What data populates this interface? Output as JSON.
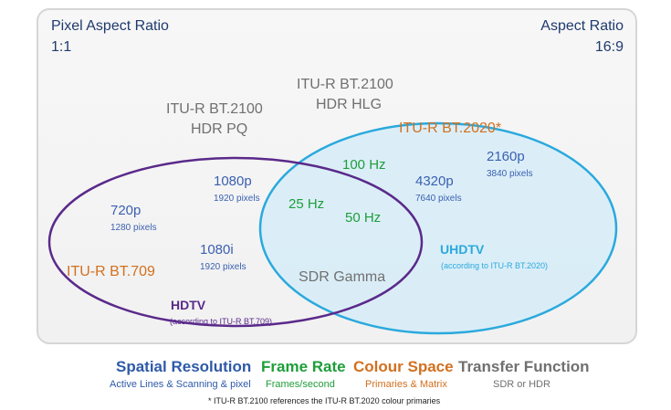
{
  "corners": {
    "top_left": {
      "title": "Pixel Aspect Ratio",
      "value": "1:1"
    },
    "top_right": {
      "title": "Aspect Ratio",
      "value": "16:9"
    }
  },
  "transfer_labels": {
    "hdr_pq": {
      "line1": "ITU-R BT.2100",
      "line2": "HDR PQ"
    },
    "hdr_hlg": {
      "line1": "ITU-R BT.2100",
      "line2": "HDR HLG"
    }
  },
  "uhdtv": {
    "standard": "ITU-R BT.2020*",
    "res_4320": {
      "label": "4320p",
      "pixels": "7640 pixels"
    },
    "res_2160": {
      "label": "2160p",
      "pixels": "3840 pixels"
    },
    "rate_100": "100 Hz",
    "name": "UHDTV",
    "note": "(according to ITU-R BT.2020)"
  },
  "hdtv": {
    "res_720": {
      "label": "720p",
      "pixels": "1280 pixels"
    },
    "res_1080p": {
      "label": "1080p",
      "pixels": "1920 pixels"
    },
    "res_1080i": {
      "label": "1080i",
      "pixels": "1920 pixels"
    },
    "standard": "ITU-R BT.709",
    "name": "HDTV",
    "note": "(according to ITU-R BT.709)"
  },
  "overlap": {
    "rate_25": "25 Hz",
    "rate_50": "50 Hz",
    "gamma": "SDR Gamma"
  },
  "legend": [
    {
      "title": "Spatial Resolution",
      "sub": "Active Lines & Scanning & pixel",
      "color": "#2e5aa8"
    },
    {
      "title": "Frame Rate",
      "sub": "Frames/second",
      "color": "#1e9e3a"
    },
    {
      "title": "Colour Space",
      "sub": "Primaries & Matrix",
      "color": "#d2701f"
    },
    {
      "title": "Transfer Function",
      "sub": "SDR or HDR",
      "color": "#707070"
    }
  ],
  "footnote": "* ITU-R BT.2100 references the ITU-R BT.2020 colour primaries",
  "colors": {
    "hdtv_ellipse": "#5a2a8a",
    "uhdtv_ellipse": "#2aa9dd",
    "uhdtv_fill": "#cfeaf7",
    "resolution": "#3a5fb0",
    "frame_rate": "#1e9e3a",
    "colour_space": "#d2701f",
    "transfer": "#707070"
  }
}
